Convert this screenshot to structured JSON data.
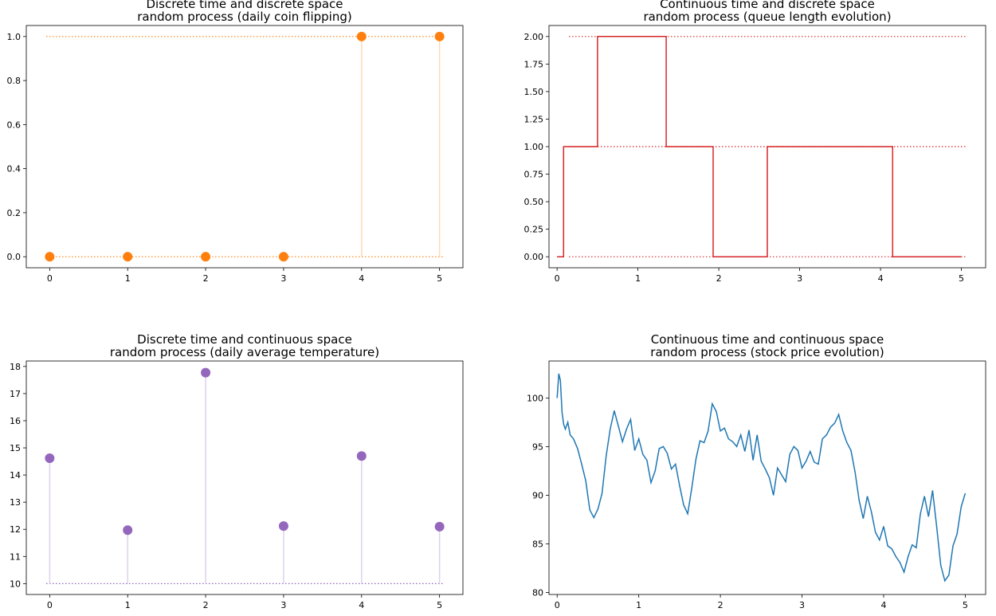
{
  "chart_data": [
    {
      "type": "scatter",
      "title_lines": [
        "Discrete time and discrete space",
        "random process (daily coin flipping)"
      ],
      "x": [
        0,
        1,
        2,
        3,
        4,
        5
      ],
      "y": [
        0,
        0,
        0,
        0,
        1,
        1
      ],
      "levels": [
        0,
        1
      ],
      "xlim": [
        -0.3,
        5.3
      ],
      "ylim": [
        -0.05,
        1.05
      ],
      "xticks": [
        0,
        1,
        2,
        3,
        4,
        5
      ],
      "yticks": [
        0.0,
        0.2,
        0.4,
        0.6,
        0.8,
        1.0
      ],
      "ytick_labels": [
        "0.0",
        "0.2",
        "0.4",
        "0.6",
        "0.8",
        "1.0"
      ],
      "color": "#ff7f0e",
      "stem_color": "#ffd9b3",
      "grid": false
    },
    {
      "type": "line",
      "step": true,
      "title_lines": [
        "Continuous time and discrete space",
        "random process (queue length evolution)"
      ],
      "x": [
        0.0,
        0.08,
        0.08,
        0.5,
        0.5,
        1.35,
        1.35,
        1.93,
        1.93,
        2.6,
        2.6,
        4.15,
        4.15,
        5.0
      ],
      "y": [
        0,
        0,
        1,
        1,
        2,
        2,
        1,
        1,
        0,
        0,
        1,
        1,
        0,
        0
      ],
      "levels": [
        0,
        1,
        2
      ],
      "xlim": [
        -0.1,
        5.3
      ],
      "ylim": [
        -0.1,
        2.1
      ],
      "xticks": [
        0,
        1,
        2,
        3,
        4,
        5
      ],
      "yticks": [
        0.0,
        0.25,
        0.5,
        0.75,
        1.0,
        1.25,
        1.5,
        1.75,
        2.0
      ],
      "ytick_labels": [
        "0.00",
        "0.25",
        "0.50",
        "0.75",
        "1.00",
        "1.25",
        "1.50",
        "1.75",
        "2.00"
      ],
      "color": "#d62728",
      "grid": false
    },
    {
      "type": "scatter",
      "title_lines": [
        "Discrete time and continuous space",
        "random process (daily average temperature)"
      ],
      "x": [
        0,
        1,
        2,
        3,
        4,
        5
      ],
      "y": [
        14.62,
        11.97,
        17.77,
        12.12,
        14.7,
        12.1
      ],
      "baseline": 10,
      "xlim": [
        -0.3,
        5.3
      ],
      "ylim": [
        9.6,
        18.2
      ],
      "xticks": [
        0,
        1,
        2,
        3,
        4,
        5
      ],
      "yticks": [
        10,
        11,
        12,
        13,
        14,
        15,
        16,
        17,
        18
      ],
      "ytick_labels": [
        "10",
        "11",
        "12",
        "13",
        "14",
        "15",
        "16",
        "17",
        "18"
      ],
      "color": "#9467bd",
      "stem_color": "#ddd2ec",
      "grid": false
    },
    {
      "type": "line",
      "title_lines": [
        "Continuous time and continuous space",
        "random process (stock price evolution)"
      ],
      "x": [
        0.0,
        0.02,
        0.04,
        0.06,
        0.08,
        0.1,
        0.13,
        0.16,
        0.2,
        0.25,
        0.3,
        0.35,
        0.4,
        0.45,
        0.5,
        0.55,
        0.6,
        0.65,
        0.7,
        0.75,
        0.8,
        0.85,
        0.9,
        0.95,
        1.0,
        1.05,
        1.1,
        1.15,
        1.2,
        1.25,
        1.3,
        1.35,
        1.4,
        1.45,
        1.5,
        1.55,
        1.6,
        1.65,
        1.7,
        1.75,
        1.8,
        1.85,
        1.9,
        1.95,
        2.0,
        2.05,
        2.1,
        2.15,
        2.2,
        2.25,
        2.3,
        2.35,
        2.4,
        2.45,
        2.5,
        2.55,
        2.6,
        2.65,
        2.7,
        2.75,
        2.8,
        2.85,
        2.9,
        2.95,
        3.0,
        3.05,
        3.1,
        3.15,
        3.2,
        3.25,
        3.3,
        3.35,
        3.4,
        3.45,
        3.5,
        3.55,
        3.6,
        3.65,
        3.7,
        3.75,
        3.8,
        3.85,
        3.9,
        3.95,
        4.0,
        4.05,
        4.1,
        4.15,
        4.2,
        4.25,
        4.3,
        4.35,
        4.4,
        4.45,
        4.5,
        4.55,
        4.6,
        4.65,
        4.7,
        4.75,
        4.8,
        4.85,
        4.9,
        4.95,
        5.0
      ],
      "y": [
        100.0,
        102.5,
        101.8,
        98.5,
        97.3,
        96.8,
        97.5,
        96.2,
        95.8,
        94.8,
        93.2,
        91.5,
        88.5,
        87.7,
        88.6,
        90.2,
        94.0,
        96.8,
        98.7,
        97.1,
        95.5,
        96.8,
        97.8,
        94.6,
        95.8,
        94.2,
        93.6,
        91.3,
        92.5,
        94.8,
        95.0,
        94.3,
        92.7,
        93.2,
        91.0,
        89.0,
        88.1,
        90.8,
        93.7,
        95.6,
        95.4,
        96.6,
        99.4,
        98.6,
        96.6,
        96.9,
        95.8,
        95.5,
        95.0,
        96.2,
        94.5,
        96.7,
        93.6,
        96.2,
        93.5,
        92.7,
        91.8,
        90.0,
        92.8,
        92.1,
        91.4,
        94.2,
        95.0,
        94.6,
        92.8,
        93.5,
        94.5,
        93.4,
        93.2,
        95.8,
        96.2,
        97.0,
        97.4,
        98.3,
        96.6,
        95.4,
        94.6,
        92.4,
        89.5,
        87.6,
        89.9,
        88.3,
        86.2,
        85.4,
        86.8,
        84.8,
        84.5,
        83.7,
        83.1,
        82.1,
        83.7,
        84.9,
        84.6,
        88.1,
        89.9,
        87.8,
        90.5,
        86.8,
        82.8,
        81.2,
        81.8,
        84.8,
        86.0,
        88.8,
        90.2
      ],
      "xlim": [
        -0.1,
        5.25
      ],
      "ylim": [
        79.8,
        103.8
      ],
      "xticks": [
        0,
        1,
        2,
        3,
        4,
        5
      ],
      "yticks": [
        80,
        85,
        90,
        95,
        100
      ],
      "ytick_labels": [
        "80",
        "85",
        "90",
        "95",
        "100"
      ],
      "color": "#1f77b4",
      "grid": false
    }
  ]
}
